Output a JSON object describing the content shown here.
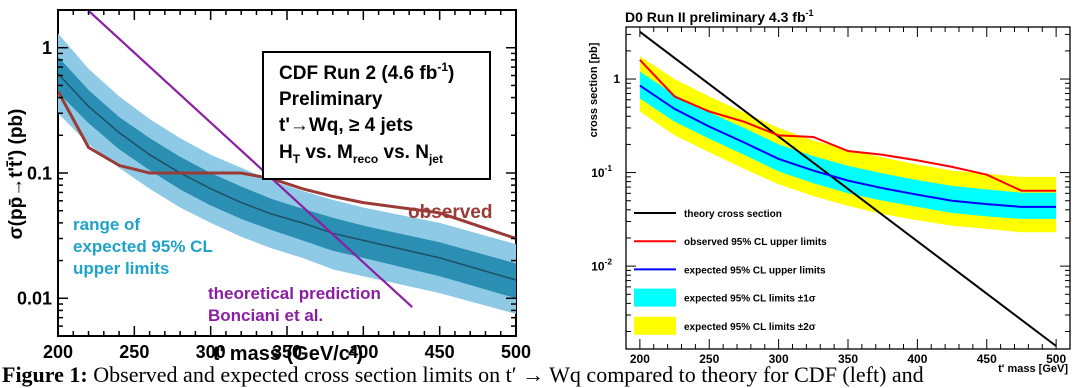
{
  "caption": {
    "label": "Figure 1:",
    "text": "Observed and expected cross section limits on t′ → Wq compared to theory for CDF (left) and"
  },
  "chart_data": [
    {
      "type": "line",
      "title": "",
      "xlabel": "t' mass  (GeV/c²)",
      "ylabel": "σ(pp̄→t't̄')  (pb)",
      "xlim": [
        200,
        500
      ],
      "ylim": [
        0.005,
        2.0
      ],
      "yscale": "log",
      "grid": false,
      "x_ticks": [
        "200",
        "250",
        "300",
        "350",
        "400",
        "450",
        "500"
      ],
      "y_ticks": [
        {
          "value": 1,
          "label": "1"
        },
        {
          "value": 0.1,
          "label": "0.1"
        },
        {
          "value": 0.01,
          "label": "0.01"
        }
      ],
      "legend_box": {
        "line1": "CDF Run 2 (4.6 fb",
        "line1_sup": "-1",
        "line1_end": ")",
        "line2": "Preliminary",
        "line3": "t'→Wq, ≥ 4 jets",
        "line4_h": "H",
        "line4_h_sub": "T",
        "line4_vs1": " vs. M",
        "line4_m_sub": "reco",
        "line4_vs2": " vs. N",
        "line4_n_sub": "jet"
      },
      "annotations": {
        "observed": "observed",
        "range_line1": "range of",
        "range_line2": "expected 95% CL",
        "range_line3": "upper limits",
        "theory_line1": "theoretical prediction",
        "theory_line2": "Bonciani et al."
      },
      "colors": {
        "band_2sigma": "#8ecae6",
        "band_1sigma": "#2b8fb3",
        "expected": "#1f4f66",
        "observed": "#9b3b36",
        "theory": "#8b1fa3",
        "range_text": "#1fa3c8",
        "theory_text": "#8b1fa3",
        "observed_text": "#9b3b36"
      },
      "series": [
        {
          "name": "expected",
          "x": [
            200,
            220,
            240,
            260,
            280,
            300,
            320,
            340,
            360,
            380,
            400,
            450,
            500
          ],
          "y": [
            0.62,
            0.34,
            0.21,
            0.14,
            0.1,
            0.075,
            0.058,
            0.047,
            0.04,
            0.033,
            0.029,
            0.021,
            0.014
          ],
          "up1": [
            0.85,
            0.46,
            0.28,
            0.19,
            0.135,
            0.1,
            0.078,
            0.062,
            0.052,
            0.044,
            0.038,
            0.028,
            0.019
          ],
          "dn1": [
            0.44,
            0.25,
            0.155,
            0.105,
            0.074,
            0.055,
            0.043,
            0.035,
            0.029,
            0.024,
            0.021,
            0.015,
            0.01
          ],
          "up2": [
            1.3,
            0.68,
            0.41,
            0.27,
            0.19,
            0.14,
            0.11,
            0.087,
            0.072,
            0.061,
            0.053,
            0.04,
            0.027
          ],
          "dn2": [
            0.3,
            0.17,
            0.11,
            0.075,
            0.053,
            0.04,
            0.031,
            0.025,
            0.021,
            0.017,
            0.015,
            0.011,
            0.0075
          ]
        },
        {
          "name": "observed",
          "x": [
            200,
            220,
            240,
            260,
            280,
            300,
            320,
            340,
            360,
            380,
            400,
            450,
            500
          ],
          "y": [
            0.45,
            0.16,
            0.115,
            0.1,
            0.1,
            0.1,
            0.1,
            0.09,
            0.075,
            0.065,
            0.058,
            0.048,
            0.03
          ]
        },
        {
          "name": "theoretical prediction",
          "x": [
            200,
            432
          ],
          "y": [
            3.3,
            0.0085
          ]
        }
      ]
    },
    {
      "type": "line",
      "title": "D0 Run II preliminary 4.3 fb",
      "title_sup": "-1",
      "xlabel": "t' mass [GeV]",
      "ylabel": "cross section [pb]",
      "xlim": [
        190,
        510
      ],
      "ylim": [
        0.0013,
        3.6
      ],
      "yscale": "log",
      "grid": false,
      "x_ticks": [
        "200",
        "250",
        "300",
        "350",
        "400",
        "450",
        "500"
      ],
      "y_ticks": [
        {
          "value": 1,
          "label": "1",
          "sup": ""
        },
        {
          "value": 0.1,
          "label": "10",
          "sup": "-1"
        },
        {
          "value": 0.01,
          "label": "10",
          "sup": "-2"
        }
      ],
      "legend": [
        {
          "label": "theory cross section",
          "kind": "line",
          "color": "#000000"
        },
        {
          "label": "observed 95% CL upper limits",
          "kind": "line",
          "color": "#ff0000"
        },
        {
          "label": "expected 95% CL upper limits",
          "kind": "line",
          "color": "#0000ff"
        },
        {
          "label": "expected 95% CL limits ±1σ",
          "kind": "box",
          "color": "#00ffff"
        },
        {
          "label": "expected 95% CL limits ±2σ",
          "kind": "box",
          "color": "#ffff00"
        }
      ],
      "legend_position": "bottom-left",
      "series": [
        {
          "name": "theory cross section",
          "x": [
            200,
            500
          ],
          "y": [
            3.2,
            0.0014
          ]
        },
        {
          "name": "observed 95% CL upper limits",
          "x": [
            200,
            225,
            250,
            275,
            300,
            325,
            350,
            375,
            400,
            425,
            450,
            475,
            500
          ],
          "y": [
            1.6,
            0.65,
            0.45,
            0.35,
            0.25,
            0.24,
            0.17,
            0.155,
            0.135,
            0.115,
            0.095,
            0.064,
            0.064
          ]
        },
        {
          "name": "expected 95% CL upper limits",
          "x": [
            200,
            225,
            250,
            275,
            300,
            325,
            350,
            375,
            400,
            425,
            450,
            475,
            500
          ],
          "y": [
            0.85,
            0.48,
            0.31,
            0.21,
            0.14,
            0.105,
            0.082,
            0.068,
            0.058,
            0.05,
            0.046,
            0.043,
            0.043
          ],
          "up1": [
            1.2,
            0.68,
            0.44,
            0.3,
            0.2,
            0.15,
            0.118,
            0.098,
            0.083,
            0.072,
            0.066,
            0.061,
            0.061
          ],
          "dn1": [
            0.62,
            0.35,
            0.23,
            0.155,
            0.103,
            0.077,
            0.06,
            0.05,
            0.043,
            0.037,
            0.034,
            0.032,
            0.032
          ],
          "up2": [
            1.75,
            1.0,
            0.65,
            0.44,
            0.3,
            0.22,
            0.175,
            0.145,
            0.122,
            0.105,
            0.097,
            0.09,
            0.09
          ],
          "dn2": [
            0.45,
            0.25,
            0.165,
            0.11,
            0.075,
            0.056,
            0.044,
            0.036,
            0.031,
            0.027,
            0.025,
            0.023,
            0.023
          ]
        }
      ]
    }
  ]
}
